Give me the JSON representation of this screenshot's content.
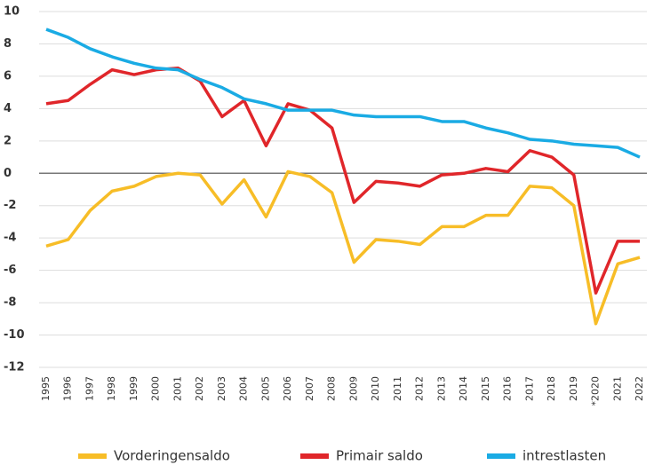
{
  "chart_data": {
    "type": "line",
    "categories": [
      "1995",
      "1996",
      "1997",
      "1998",
      "1999",
      "2000",
      "2001",
      "2002",
      "2003",
      "2004",
      "2005",
      "2006",
      "2007",
      "2008",
      "2009",
      "2010",
      "2011",
      "2012",
      "2013",
      "2014",
      "2015",
      "2016",
      "2017",
      "2018",
      "2019",
      "*2020",
      "2021",
      "2022"
    ],
    "series": [
      {
        "name": "Vorderingensaldo",
        "color": "#f7bd27",
        "values": [
          -4.5,
          -4.1,
          -2.3,
          -1.1,
          -0.8,
          -0.2,
          0.0,
          -0.1,
          -1.9,
          -0.4,
          -2.7,
          0.1,
          -0.2,
          -1.2,
          -5.5,
          -4.1,
          -4.2,
          -4.4,
          -3.3,
          -3.3,
          -2.6,
          -2.6,
          -0.8,
          -0.9,
          -2.0,
          -9.3,
          -5.6,
          -5.2
        ]
      },
      {
        "name": "Primair saldo",
        "color": "#e0262a",
        "values": [
          4.3,
          4.5,
          5.5,
          6.4,
          6.1,
          6.4,
          6.5,
          5.7,
          3.5,
          4.5,
          1.7,
          4.3,
          3.9,
          2.8,
          -1.8,
          -0.5,
          -0.6,
          -0.8,
          -0.1,
          0.0,
          0.3,
          0.1,
          1.4,
          1.0,
          -0.1,
          -7.4,
          -4.2,
          -4.2
        ]
      },
      {
        "name": "intrestlasten",
        "color": "#1aabe4",
        "values": [
          8.9,
          8.4,
          7.7,
          7.2,
          6.8,
          6.5,
          6.4,
          5.8,
          5.3,
          4.6,
          4.3,
          3.9,
          3.9,
          3.9,
          3.6,
          3.5,
          3.5,
          3.5,
          3.2,
          3.2,
          2.8,
          2.5,
          2.1,
          2.0,
          1.8,
          1.7,
          1.6,
          1.0
        ]
      }
    ],
    "ylim": [
      -12,
      10
    ],
    "yticks": [
      -12,
      -10,
      -8,
      -6,
      -4,
      -2,
      0,
      2,
      4,
      6,
      8,
      10
    ],
    "grid": true
  }
}
